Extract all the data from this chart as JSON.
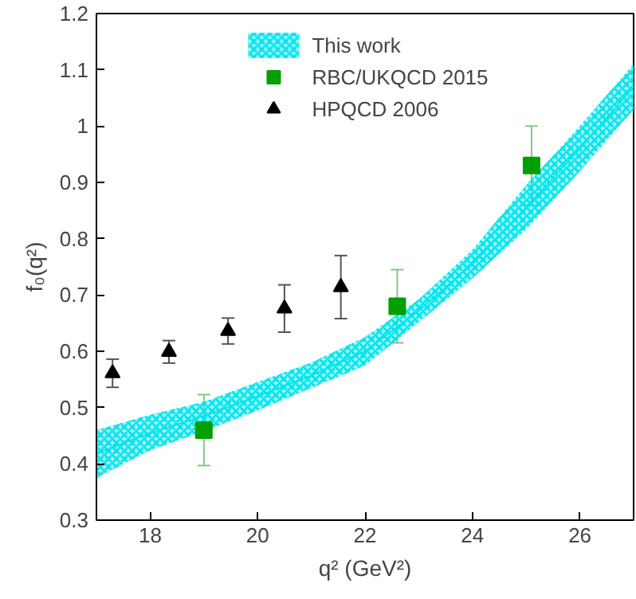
{
  "chart_data": {
    "type": "scatter",
    "xlabel": "q² (GeV²)",
    "ylabel": "f₀(q²)",
    "xlim": [
      17,
      27
    ],
    "ylim": [
      0.3,
      1.2
    ],
    "xticks": [
      18,
      20,
      22,
      24,
      26
    ],
    "yticks": [
      0.3,
      0.4,
      0.5,
      0.6,
      0.7,
      0.8,
      0.9,
      1,
      1.1,
      1.2
    ],
    "grid": false,
    "legend": "top",
    "series": [
      {
        "name": "This work",
        "type": "line",
        "color": "#00e5ee",
        "x": [
          17,
          18,
          19,
          20,
          21,
          22,
          23,
          24,
          25,
          26,
          27
        ],
        "values": [
          0.418,
          0.455,
          0.485,
          0.52,
          0.557,
          0.6,
          0.672,
          0.755,
          0.856,
          0.96,
          1.07
        ],
        "lower": [
          0.375,
          0.424,
          0.458,
          0.495,
          0.535,
          0.575,
          0.652,
          0.73,
          0.817,
          0.92,
          1.03
        ],
        "upper": [
          0.46,
          0.487,
          0.51,
          0.545,
          0.58,
          0.625,
          0.692,
          0.78,
          0.895,
          1.0,
          1.11
        ]
      },
      {
        "name": "RBC/UKQCD 2015",
        "marker": "square",
        "color": "#00a000",
        "x": [
          19.0,
          22.6,
          25.1
        ],
        "values": [
          0.46,
          0.68,
          0.93
        ],
        "errors": [
          0.063,
          0.065,
          0.07
        ]
      },
      {
        "name": "HPQCD 2006",
        "marker": "triangle",
        "color": "#000000",
        "x": [
          17.3,
          18.35,
          19.45,
          20.5,
          21.55
        ],
        "values": [
          0.561,
          0.599,
          0.636,
          0.676,
          0.714
        ],
        "errors": [
          0.025,
          0.02,
          0.023,
          0.042,
          0.056
        ]
      }
    ]
  }
}
